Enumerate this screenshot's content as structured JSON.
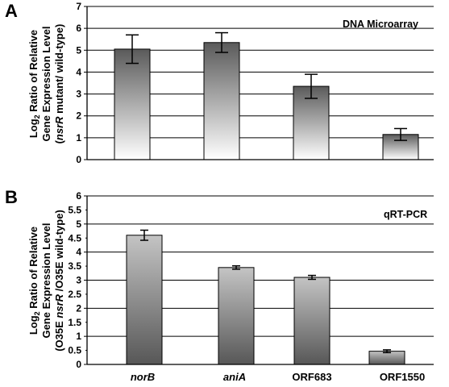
{
  "chart_data": [
    {
      "panel": "A",
      "type": "bar",
      "annotation": "DNA Microarray",
      "ylabel_lines": [
        "Log₂ Ratio of Relative",
        "Gene Expression Level",
        "(nsrR mutant/ wild-type)"
      ],
      "categories": [
        "norB",
        "aniA",
        "ORF683",
        "ORF1550"
      ],
      "series": [
        {
          "values": [
            5.05,
            5.35,
            3.35,
            1.15
          ],
          "errors": [
            0.65,
            0.45,
            0.55,
            0.27
          ]
        }
      ],
      "ylim": [
        0,
        7
      ],
      "yticks": [
        "0",
        "1",
        "2",
        "3",
        "4",
        "5",
        "6",
        "7"
      ],
      "grid": true,
      "colors": {
        "bar_top": "#5a5a5a",
        "bar_bottom": "#ffffff",
        "grid": "#000000"
      }
    },
    {
      "panel": "B",
      "type": "bar",
      "annotation": "qRT-PCR",
      "ylabel_lines": [
        "Log₂ Ratio of Relative",
        "Gene Expression Level",
        "(O35E nsrR /O35E wild-type)"
      ],
      "categories": [
        "norB",
        "aniA",
        "ORF683",
        "ORF1550"
      ],
      "series": [
        {
          "values": [
            4.6,
            3.45,
            3.1,
            0.47
          ],
          "errors": [
            0.18,
            0.06,
            0.07,
            0.05
          ]
        }
      ],
      "ylim": [
        0,
        6
      ],
      "yticks": [
        "0",
        "0.5",
        "1",
        "1.5",
        "2",
        "2.5",
        "3",
        "3.5",
        "4",
        "4.5",
        "5",
        "5.5",
        "6"
      ],
      "grid": true,
      "colors": {
        "bar_top": "#c4c4c4",
        "bar_bottom": "#575757",
        "grid": "#000000"
      }
    }
  ],
  "category_labels": [
    "norB",
    "aniA",
    "ORF683",
    "ORF1550"
  ],
  "italic_categories": [
    "norB",
    "aniA"
  ]
}
